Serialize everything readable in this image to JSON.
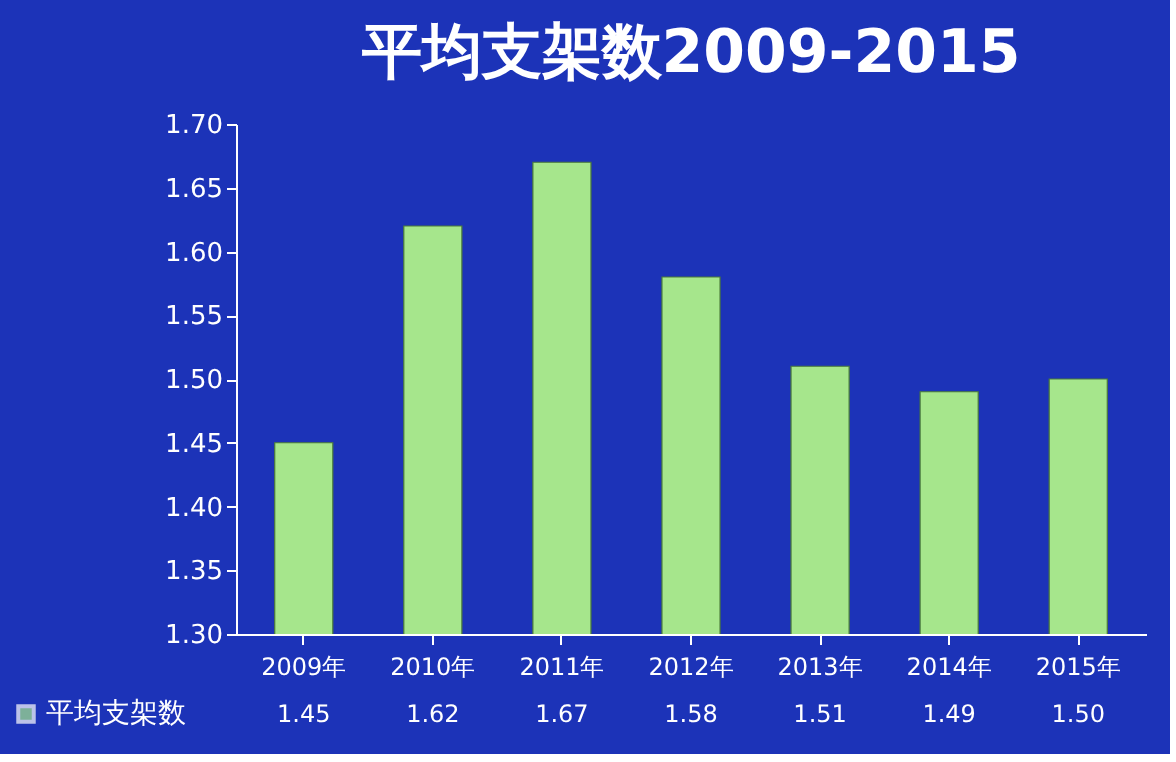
{
  "chart_data": {
    "type": "bar",
    "title": "平均支架数2009-2015",
    "categories": [
      "2009年",
      "2010年",
      "2011年",
      "2012年",
      "2013年",
      "2014年",
      "2015年"
    ],
    "series": [
      {
        "name": "平均支架数",
        "color": "#a6e68c",
        "values": [
          1.45,
          1.62,
          1.67,
          1.58,
          1.51,
          1.49,
          1.5
        ],
        "value_labels": [
          "1.45",
          "1.62",
          "1.67",
          "1.58",
          "1.51",
          "1.49",
          "1.50"
        ]
      }
    ],
    "ylim": [
      1.3,
      1.7
    ],
    "yticks": [
      {
        "value": 1.3,
        "label": "1.30"
      },
      {
        "value": 1.35,
        "label": "1.35"
      },
      {
        "value": 1.4,
        "label": "1.40"
      },
      {
        "value": 1.45,
        "label": "1.45"
      },
      {
        "value": 1.5,
        "label": "1.50"
      },
      {
        "value": 1.55,
        "label": "1.55"
      },
      {
        "value": 1.6,
        "label": "1.60"
      },
      {
        "value": 1.65,
        "label": "1.65"
      },
      {
        "value": 1.7,
        "label": "1.70"
      }
    ],
    "legend": "bottom left",
    "grid": false
  }
}
